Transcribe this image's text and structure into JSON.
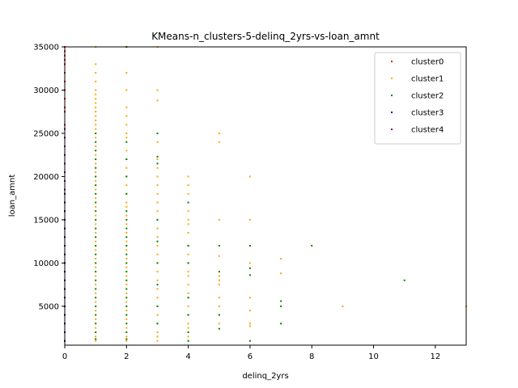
{
  "chart_data": {
    "type": "scatter",
    "title": "KMeans-n_clusters-5-delinq_2yrs-vs-loan_amnt",
    "xlabel": "delinq_2yrs",
    "ylabel": "loan_amnt",
    "xlim": [
      0,
      13
    ],
    "ylim": [
      500,
      35000
    ],
    "xticks": [
      0,
      2,
      4,
      6,
      8,
      10,
      12
    ],
    "yticks": [
      5000,
      10000,
      15000,
      20000,
      25000,
      30000,
      35000
    ],
    "grid": false,
    "legend_position": "top-right",
    "series": [
      {
        "name": "cluster0",
        "color": "#ff0000",
        "points": [
          [
            0,
            26000
          ],
          [
            0,
            27500
          ],
          [
            0,
            28000
          ],
          [
            0,
            29000
          ],
          [
            0,
            30000
          ],
          [
            0,
            31000
          ],
          [
            0,
            32000
          ],
          [
            0,
            33000
          ],
          [
            0,
            33500
          ],
          [
            0,
            34000
          ],
          [
            0,
            34500
          ],
          [
            0,
            35000
          ]
        ]
      },
      {
        "name": "cluster1",
        "color": "#ffa500",
        "points": [
          [
            1,
            35000
          ],
          [
            1,
            33000
          ],
          [
            1,
            32000
          ],
          [
            1,
            31000
          ],
          [
            1,
            30000
          ],
          [
            1,
            29500
          ],
          [
            1,
            29000
          ],
          [
            1,
            28500
          ],
          [
            1,
            28000
          ],
          [
            1,
            27500
          ],
          [
            1,
            27000
          ],
          [
            1,
            26500
          ],
          [
            1,
            26000
          ],
          [
            1,
            25500
          ],
          [
            1,
            24500
          ],
          [
            1,
            23500
          ],
          [
            1,
            22500
          ],
          [
            1,
            21500
          ],
          [
            1,
            20500
          ],
          [
            1,
            19500
          ],
          [
            1,
            18500
          ],
          [
            1,
            17500
          ],
          [
            1,
            16500
          ],
          [
            1,
            15500
          ],
          [
            1,
            14500
          ],
          [
            1,
            13500
          ],
          [
            1,
            12500
          ],
          [
            1,
            11500
          ],
          [
            1,
            10500
          ],
          [
            1,
            9500
          ],
          [
            1,
            8500
          ],
          [
            1,
            7500
          ],
          [
            1,
            6500
          ],
          [
            1,
            5500
          ],
          [
            1,
            4500
          ],
          [
            1,
            3500
          ],
          [
            1,
            2500
          ],
          [
            1,
            1500
          ],
          [
            1,
            1000
          ],
          [
            2,
            35000
          ],
          [
            2,
            32000
          ],
          [
            2,
            30000
          ],
          [
            2,
            28000
          ],
          [
            2,
            27000
          ],
          [
            2,
            26000
          ],
          [
            2,
            25000
          ],
          [
            2,
            24500
          ],
          [
            2,
            23000
          ],
          [
            2,
            22000
          ],
          [
            2,
            21000
          ],
          [
            2,
            20000
          ],
          [
            2,
            19000
          ],
          [
            2,
            18000
          ],
          [
            2,
            17000
          ],
          [
            2,
            16500
          ],
          [
            2,
            15500
          ],
          [
            2,
            14500
          ],
          [
            2,
            13500
          ],
          [
            2,
            12500
          ],
          [
            2,
            11500
          ],
          [
            2,
            10500
          ],
          [
            2,
            9500
          ],
          [
            2,
            8500
          ],
          [
            2,
            7500
          ],
          [
            2,
            6500
          ],
          [
            2,
            5500
          ],
          [
            2,
            4500
          ],
          [
            2,
            3500
          ],
          [
            2,
            2500
          ],
          [
            2,
            1500
          ],
          [
            2,
            1000
          ],
          [
            3,
            35000
          ],
          [
            3,
            30000
          ],
          [
            3,
            28800
          ],
          [
            3,
            24000
          ],
          [
            3,
            22000
          ],
          [
            3,
            21000
          ],
          [
            3,
            20000
          ],
          [
            3,
            19000
          ],
          [
            3,
            18000
          ],
          [
            3,
            17000
          ],
          [
            3,
            16000
          ],
          [
            3,
            15000
          ],
          [
            3,
            14000
          ],
          [
            3,
            13000
          ],
          [
            3,
            12000
          ],
          [
            3,
            11000
          ],
          [
            3,
            10000
          ],
          [
            3,
            9000
          ],
          [
            3,
            8000
          ],
          [
            3,
            7000
          ],
          [
            3,
            6000
          ],
          [
            3,
            5000
          ],
          [
            3,
            4000
          ],
          [
            3,
            3000
          ],
          [
            3,
            2000
          ],
          [
            3,
            1500
          ],
          [
            3,
            1000
          ],
          [
            4,
            20000
          ],
          [
            4,
            19000
          ],
          [
            4,
            18000
          ],
          [
            4,
            16000
          ],
          [
            4,
            15000
          ],
          [
            4,
            14500
          ],
          [
            4,
            13500
          ],
          [
            4,
            12000
          ],
          [
            4,
            11000
          ],
          [
            4,
            10000
          ],
          [
            4,
            9000
          ],
          [
            4,
            8500
          ],
          [
            4,
            7500
          ],
          [
            4,
            6500
          ],
          [
            4,
            6000
          ],
          [
            4,
            5000
          ],
          [
            4,
            4000
          ],
          [
            4,
            3000
          ],
          [
            4,
            2500
          ],
          [
            4,
            1500
          ],
          [
            4,
            1000
          ],
          [
            5,
            25000
          ],
          [
            5,
            24000
          ],
          [
            5,
            15000
          ],
          [
            5,
            10800
          ],
          [
            5,
            8500
          ],
          [
            5,
            8000
          ],
          [
            5,
            7500
          ],
          [
            5,
            6000
          ],
          [
            5,
            5000
          ],
          [
            5,
            4000
          ],
          [
            5,
            3000
          ],
          [
            6,
            20000
          ],
          [
            6,
            15000
          ],
          [
            6,
            12000
          ],
          [
            6,
            10000
          ],
          [
            6,
            6000
          ],
          [
            6,
            4500
          ],
          [
            6,
            3000
          ],
          [
            6,
            2700
          ],
          [
            7,
            10500
          ],
          [
            7,
            8800
          ],
          [
            9,
            5000
          ],
          [
            13,
            5000
          ]
        ]
      },
      {
        "name": "cluster2",
        "color": "#008000",
        "points": [
          [
            1,
            25000
          ],
          [
            1,
            24000
          ],
          [
            1,
            23000
          ],
          [
            1,
            22000
          ],
          [
            1,
            21000
          ],
          [
            1,
            20000
          ],
          [
            1,
            19000
          ],
          [
            1,
            18000
          ],
          [
            1,
            17000
          ],
          [
            1,
            16000
          ],
          [
            1,
            15000
          ],
          [
            1,
            14000
          ],
          [
            1,
            13000
          ],
          [
            1,
            12000
          ],
          [
            1,
            11000
          ],
          [
            1,
            10000
          ],
          [
            1,
            9000
          ],
          [
            1,
            8000
          ],
          [
            1,
            7000
          ],
          [
            1,
            6000
          ],
          [
            1,
            5000
          ],
          [
            1,
            4000
          ],
          [
            1,
            3000
          ],
          [
            1,
            2000
          ],
          [
            1,
            1200
          ],
          [
            2,
            35000
          ],
          [
            2,
            24000
          ],
          [
            2,
            22000
          ],
          [
            2,
            20000
          ],
          [
            2,
            18000
          ],
          [
            2,
            16000
          ],
          [
            2,
            15000
          ],
          [
            2,
            14000
          ],
          [
            2,
            13000
          ],
          [
            2,
            12000
          ],
          [
            2,
            11000
          ],
          [
            2,
            10000
          ],
          [
            2,
            9000
          ],
          [
            2,
            8000
          ],
          [
            2,
            7000
          ],
          [
            2,
            6000
          ],
          [
            2,
            5000
          ],
          [
            2,
            4000
          ],
          [
            2,
            3000
          ],
          [
            2,
            2000
          ],
          [
            2,
            1200
          ],
          [
            3,
            25000
          ],
          [
            3,
            22300
          ],
          [
            3,
            21500
          ],
          [
            3,
            15000
          ],
          [
            3,
            12500
          ],
          [
            3,
            10000
          ],
          [
            3,
            7500
          ],
          [
            3,
            5000
          ],
          [
            3,
            3000
          ],
          [
            4,
            17000
          ],
          [
            4,
            12000
          ],
          [
            4,
            10000
          ],
          [
            4,
            6000
          ],
          [
            4,
            4000
          ],
          [
            4,
            2000
          ],
          [
            4,
            1000
          ],
          [
            5,
            12000
          ],
          [
            5,
            9000
          ],
          [
            5,
            4000
          ],
          [
            5,
            2400
          ],
          [
            6,
            12000
          ],
          [
            6,
            9400
          ],
          [
            6,
            8600
          ],
          [
            6,
            1000
          ],
          [
            7,
            5600
          ],
          [
            7,
            5000
          ],
          [
            7,
            3000
          ],
          [
            8,
            12000
          ],
          [
            11,
            8000
          ]
        ]
      },
      {
        "name": "cluster3",
        "color": "#00008b",
        "points": [
          [
            0,
            1000
          ],
          [
            0,
            2000
          ],
          [
            0,
            3000
          ],
          [
            0,
            4000
          ],
          [
            0,
            5000
          ],
          [
            0,
            6000
          ],
          [
            0,
            7000
          ],
          [
            0,
            8000
          ],
          [
            0,
            9000
          ],
          [
            0,
            10000
          ],
          [
            0,
            11000
          ],
          [
            0,
            12000
          ],
          [
            0,
            13000
          ],
          [
            0,
            14000
          ],
          [
            0,
            15000
          ],
          [
            0,
            16000
          ],
          [
            0,
            17000
          ],
          [
            0,
            18000
          ]
        ]
      },
      {
        "name": "cluster4",
        "color": "#800080",
        "points": [
          [
            0,
            18500
          ],
          [
            0,
            19500
          ],
          [
            0,
            20500
          ],
          [
            0,
            21500
          ],
          [
            0,
            22500
          ],
          [
            0,
            23500
          ],
          [
            0,
            24500
          ],
          [
            0,
            25500
          ]
        ]
      }
    ]
  }
}
